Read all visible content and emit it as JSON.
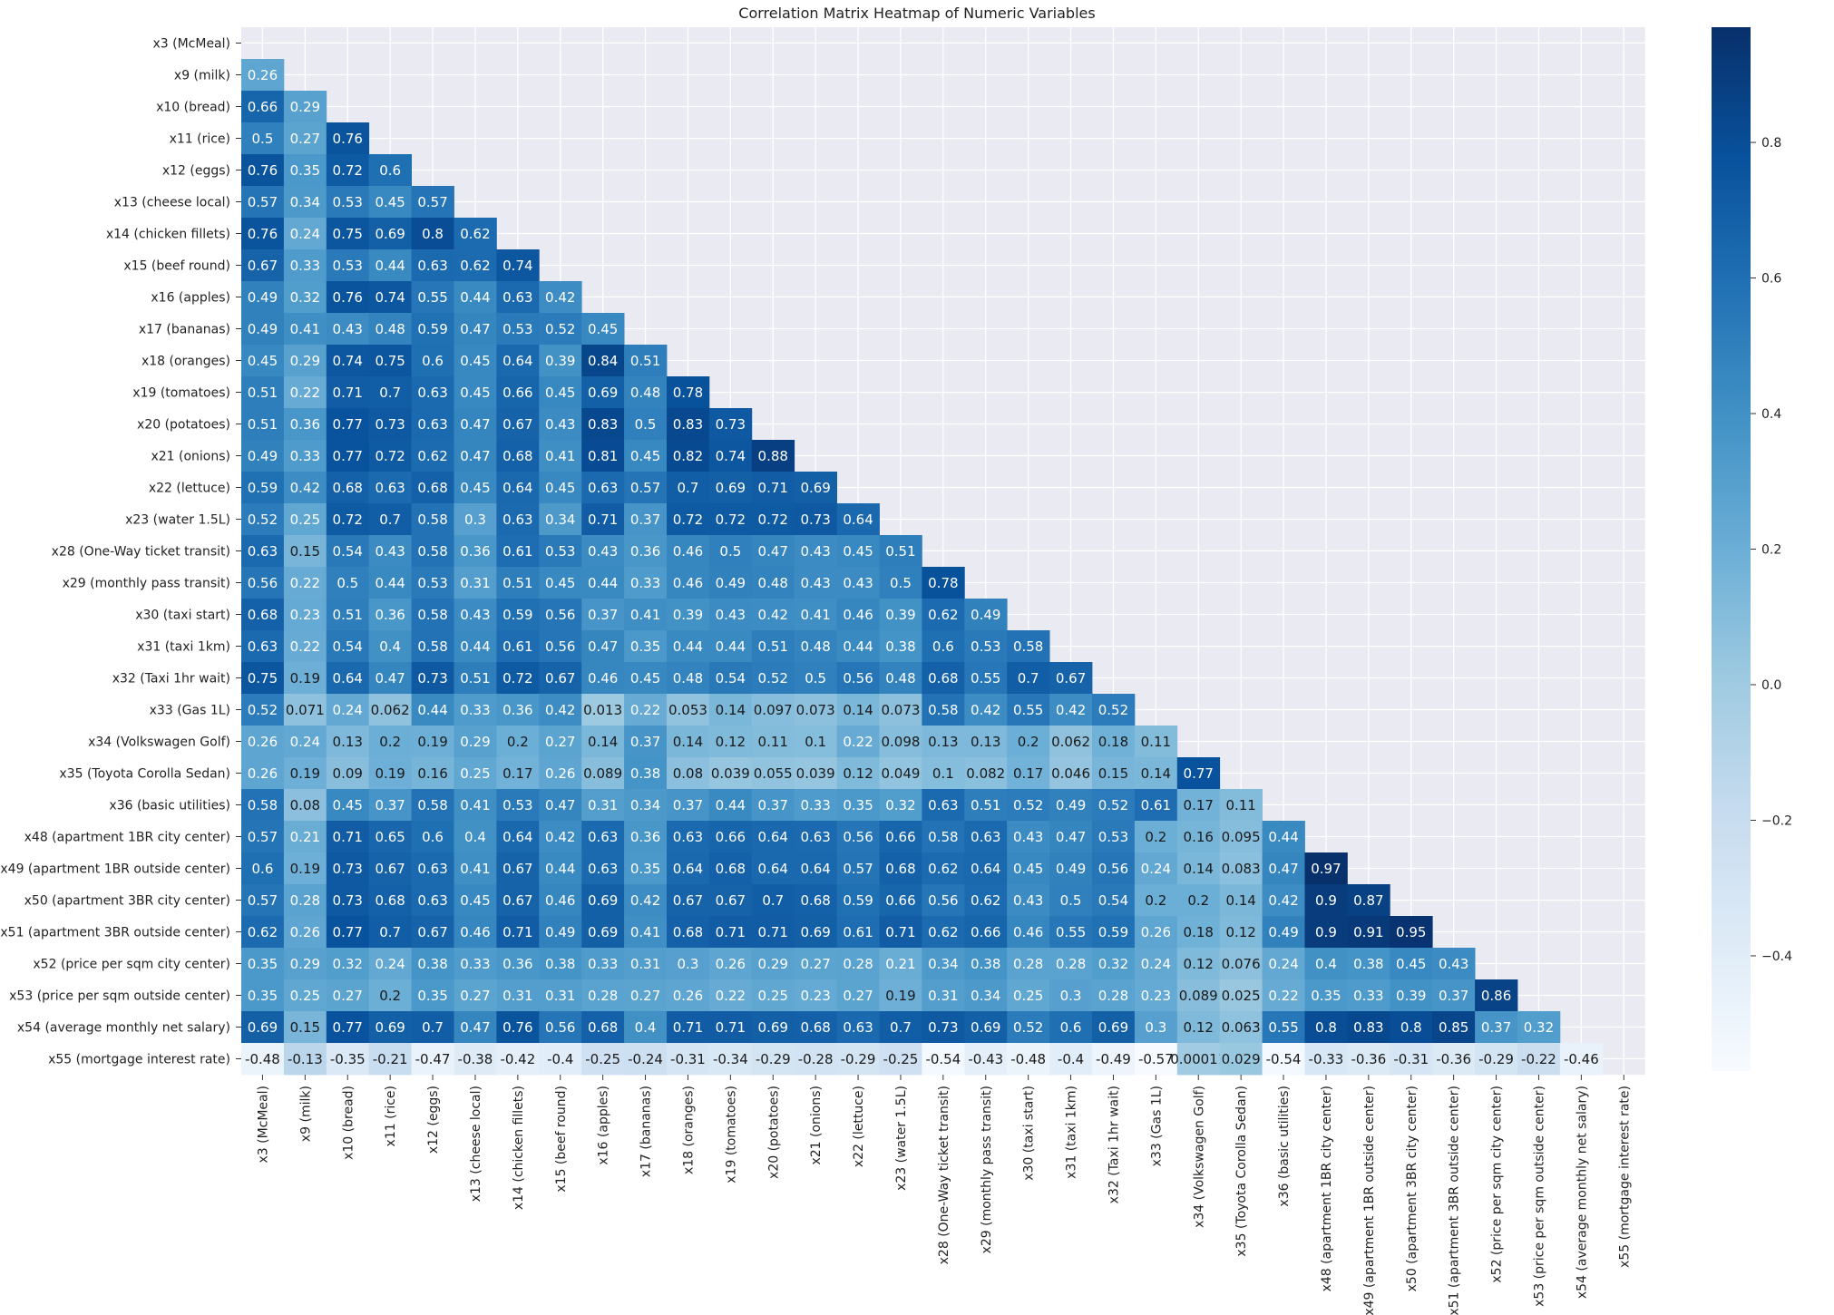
{
  "chart_data": {
    "type": "heatmap",
    "title": "Correlation Matrix Heatmap of Numeric Variables",
    "variables": [
      "x3 (McMeal)",
      "x9 (milk)",
      "x10 (bread)",
      "x11 (rice)",
      "x12 (eggs)",
      "x13 (cheese local)",
      "x14 (chicken fillets)",
      "x15 (beef round)",
      "x16 (apples)",
      "x17 (bananas)",
      "x18 (oranges)",
      "x19 (tomatoes)",
      "x20 (potatoes)",
      "x21 (onions)",
      "x22 (lettuce)",
      "x23 (water 1.5L)",
      "x28 (One-Way ticket transit)",
      "x29 (monthly pass transit)",
      "x30 (taxi start)",
      "x31 (taxi 1km)",
      "x32 (Taxi 1hr wait)",
      "x33 (Gas 1L)",
      "x34 (Volkswagen Golf)",
      "x35 (Toyota Corolla Sedan)",
      "x36 (basic utilities)",
      "x48 (apartment 1BR city center)",
      "x49 (apartment 1BR outside center)",
      "x50 (apartment 3BR city center)",
      "x51 (apartment 3BR outside center)",
      "x52 (price per sqm city center)",
      "x53 (price per sqm outside center)",
      "x54 (average monthly net salary)",
      "x55 (mortgage interest rate)"
    ],
    "values": [
      [],
      [
        0.26
      ],
      [
        0.66,
        0.29
      ],
      [
        0.5,
        0.27,
        0.76
      ],
      [
        0.76,
        0.35,
        0.72,
        0.6
      ],
      [
        0.57,
        0.34,
        0.53,
        0.45,
        0.57
      ],
      [
        0.76,
        0.24,
        0.75,
        0.69,
        0.8,
        0.62
      ],
      [
        0.67,
        0.33,
        0.53,
        0.44,
        0.63,
        0.62,
        0.74
      ],
      [
        0.49,
        0.32,
        0.76,
        0.74,
        0.55,
        0.44,
        0.63,
        0.42
      ],
      [
        0.49,
        0.41,
        0.43,
        0.48,
        0.59,
        0.47,
        0.53,
        0.52,
        0.45
      ],
      [
        0.45,
        0.29,
        0.74,
        0.75,
        0.6,
        0.45,
        0.64,
        0.39,
        0.84,
        0.51
      ],
      [
        0.51,
        0.22,
        0.71,
        0.7,
        0.63,
        0.45,
        0.66,
        0.45,
        0.69,
        0.48,
        0.78
      ],
      [
        0.51,
        0.36,
        0.77,
        0.73,
        0.63,
        0.47,
        0.67,
        0.43,
        0.83,
        0.5,
        0.83,
        0.73
      ],
      [
        0.49,
        0.33,
        0.77,
        0.72,
        0.62,
        0.47,
        0.68,
        0.41,
        0.81,
        0.45,
        0.82,
        0.74,
        0.88
      ],
      [
        0.59,
        0.42,
        0.68,
        0.63,
        0.68,
        0.45,
        0.64,
        0.45,
        0.63,
        0.57,
        0.7,
        0.69,
        0.71,
        0.69
      ],
      [
        0.52,
        0.25,
        0.72,
        0.7,
        0.58,
        0.3,
        0.63,
        0.34,
        0.71,
        0.37,
        0.72,
        0.72,
        0.72,
        0.73,
        0.64
      ],
      [
        0.63,
        0.15,
        0.54,
        0.43,
        0.58,
        0.36,
        0.61,
        0.53,
        0.43,
        0.36,
        0.46,
        0.5,
        0.47,
        0.43,
        0.45,
        0.51
      ],
      [
        0.56,
        0.22,
        0.5,
        0.44,
        0.53,
        0.31,
        0.51,
        0.45,
        0.44,
        0.33,
        0.46,
        0.49,
        0.48,
        0.43,
        0.43,
        0.5,
        0.78
      ],
      [
        0.68,
        0.23,
        0.51,
        0.36,
        0.58,
        0.43,
        0.59,
        0.56,
        0.37,
        0.41,
        0.39,
        0.43,
        0.42,
        0.41,
        0.46,
        0.39,
        0.62,
        0.49
      ],
      [
        0.63,
        0.22,
        0.54,
        0.4,
        0.58,
        0.44,
        0.61,
        0.56,
        0.47,
        0.35,
        0.44,
        0.44,
        0.51,
        0.48,
        0.44,
        0.38,
        0.6,
        0.53,
        0.58
      ],
      [
        0.75,
        0.19,
        0.64,
        0.47,
        0.73,
        0.51,
        0.72,
        0.67,
        0.46,
        0.45,
        0.48,
        0.54,
        0.52,
        0.5,
        0.56,
        0.48,
        0.68,
        0.55,
        0.7,
        0.67
      ],
      [
        0.52,
        0.071,
        0.24,
        0.062,
        0.44,
        0.33,
        0.36,
        0.42,
        0.013,
        0.22,
        0.053,
        0.14,
        0.097,
        0.073,
        0.14,
        0.073,
        0.58,
        0.42,
        0.55,
        0.42,
        0.52
      ],
      [
        0.26,
        0.24,
        0.13,
        0.2,
        0.19,
        0.29,
        0.2,
        0.27,
        0.14,
        0.37,
        0.14,
        0.12,
        0.11,
        0.1,
        0.22,
        0.098,
        0.13,
        0.13,
        0.2,
        0.062,
        0.18,
        0.11
      ],
      [
        0.26,
        0.19,
        0.09,
        0.19,
        0.16,
        0.25,
        0.17,
        0.26,
        0.089,
        0.38,
        0.08,
        0.039,
        0.055,
        0.039,
        0.12,
        0.049,
        0.1,
        0.082,
        0.17,
        0.046,
        0.15,
        0.14,
        0.77
      ],
      [
        0.58,
        0.08,
        0.45,
        0.37,
        0.58,
        0.41,
        0.53,
        0.47,
        0.31,
        0.34,
        0.37,
        0.44,
        0.37,
        0.33,
        0.35,
        0.32,
        0.63,
        0.51,
        0.52,
        0.49,
        0.52,
        0.61,
        0.17,
        0.11
      ],
      [
        0.57,
        0.21,
        0.71,
        0.65,
        0.6,
        0.4,
        0.64,
        0.42,
        0.63,
        0.36,
        0.63,
        0.66,
        0.64,
        0.63,
        0.56,
        0.66,
        0.58,
        0.63,
        0.43,
        0.47,
        0.53,
        0.2,
        0.16,
        0.095,
        0.44
      ],
      [
        0.6,
        0.19,
        0.73,
        0.67,
        0.63,
        0.41,
        0.67,
        0.44,
        0.63,
        0.35,
        0.64,
        0.68,
        0.64,
        0.64,
        0.57,
        0.68,
        0.62,
        0.64,
        0.45,
        0.49,
        0.56,
        0.24,
        0.14,
        0.083,
        0.47,
        0.97
      ],
      [
        0.57,
        0.28,
        0.73,
        0.68,
        0.63,
        0.45,
        0.67,
        0.46,
        0.69,
        0.42,
        0.67,
        0.67,
        0.7,
        0.68,
        0.59,
        0.66,
        0.56,
        0.62,
        0.43,
        0.5,
        0.54,
        0.2,
        0.2,
        0.14,
        0.42,
        0.9,
        0.87
      ],
      [
        0.62,
        0.26,
        0.77,
        0.7,
        0.67,
        0.46,
        0.71,
        0.49,
        0.69,
        0.41,
        0.68,
        0.71,
        0.71,
        0.69,
        0.61,
        0.71,
        0.62,
        0.66,
        0.46,
        0.55,
        0.59,
        0.26,
        0.18,
        0.12,
        0.49,
        0.9,
        0.91,
        0.95
      ],
      [
        0.35,
        0.29,
        0.32,
        0.24,
        0.38,
        0.33,
        0.36,
        0.38,
        0.33,
        0.31,
        0.3,
        0.26,
        0.29,
        0.27,
        0.28,
        0.21,
        0.34,
        0.38,
        0.28,
        0.28,
        0.32,
        0.24,
        0.12,
        0.076,
        0.24,
        0.4,
        0.38,
        0.45,
        0.43
      ],
      [
        0.35,
        0.25,
        0.27,
        0.2,
        0.35,
        0.27,
        0.31,
        0.31,
        0.28,
        0.27,
        0.26,
        0.22,
        0.25,
        0.23,
        0.27,
        0.19,
        0.31,
        0.34,
        0.25,
        0.3,
        0.28,
        0.23,
        0.089,
        0.025,
        0.22,
        0.35,
        0.33,
        0.39,
        0.37,
        0.86
      ],
      [
        0.69,
        0.15,
        0.77,
        0.69,
        0.7,
        0.47,
        0.76,
        0.56,
        0.68,
        0.4,
        0.71,
        0.71,
        0.69,
        0.68,
        0.63,
        0.7,
        0.73,
        0.69,
        0.52,
        0.6,
        0.69,
        0.3,
        0.12,
        0.063,
        0.55,
        0.8,
        0.83,
        0.8,
        0.85,
        0.37,
        0.32
      ],
      [
        -0.48,
        -0.13,
        -0.35,
        -0.21,
        -0.47,
        -0.38,
        -0.42,
        -0.4,
        -0.25,
        -0.24,
        -0.31,
        -0.34,
        -0.29,
        -0.28,
        -0.29,
        -0.25,
        -0.54,
        -0.43,
        -0.48,
        -0.4,
        -0.49,
        -0.57,
        0.00011,
        0.029,
        -0.54,
        -0.33,
        -0.36,
        -0.31,
        -0.36,
        -0.29,
        -0.22,
        -0.46
      ]
    ],
    "value_labels_override": {
      "32-22": "0.00011"
    },
    "colorbar": {
      "vmin": -0.57,
      "vmax": 0.97,
      "ticks": [
        -0.4,
        -0.2,
        0.0,
        0.2,
        0.4,
        0.6,
        0.8
      ],
      "tick_labels": [
        "−0.4",
        "−0.2",
        "0.0",
        "0.2",
        "0.4",
        "0.6",
        "0.8"
      ],
      "colormap": "Blues",
      "colors": [
        "#f7fbff",
        "#deebf7",
        "#c6dbef",
        "#9ecae1",
        "#6baed6",
        "#4292c6",
        "#2171b5",
        "#08519c",
        "#08306b"
      ]
    },
    "mask": "upper-triangle-including-diagonal",
    "grid": true,
    "background": "#eaeaf2"
  }
}
